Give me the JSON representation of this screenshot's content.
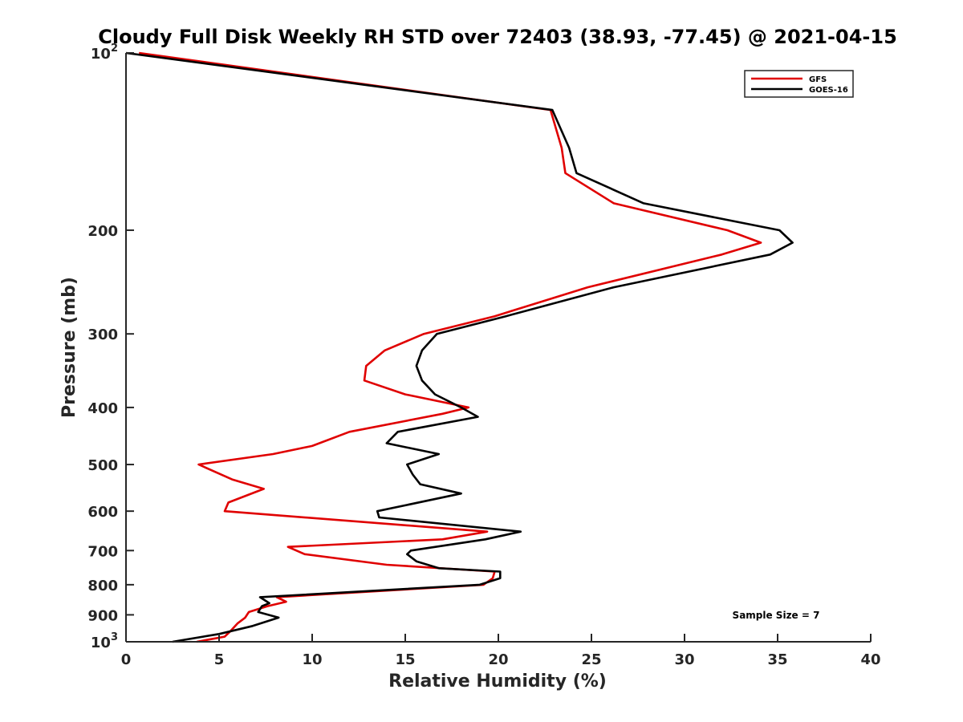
{
  "chart_data": {
    "type": "line",
    "title": "Cloudy Full Disk Weekly RH STD over 72403 (38.93, -77.45) @ 2021-04-15",
    "xlabel": "Relative Humidity (%)",
    "ylabel": "Pressure (mb)",
    "xlim": [
      0,
      40
    ],
    "ylim": [
      100,
      1000
    ],
    "y_scale": "log",
    "y_reversed": true,
    "x_ticks": [
      "0",
      "5",
      "10",
      "15",
      "20",
      "25",
      "30",
      "35",
      "40"
    ],
    "y_ticks": [
      {
        "value": 100,
        "base": "10",
        "exp": "2"
      },
      {
        "value": 200,
        "label": "200"
      },
      {
        "value": 300,
        "label": "300"
      },
      {
        "value": 400,
        "label": "400"
      },
      {
        "value": 500,
        "label": "500"
      },
      {
        "value": 600,
        "label": "600"
      },
      {
        "value": 700,
        "label": "700"
      },
      {
        "value": 800,
        "label": "800"
      },
      {
        "value": 900,
        "label": "900"
      },
      {
        "value": 1000,
        "base": "10",
        "exp": "3"
      }
    ],
    "grid": false,
    "legend_position": "top-right",
    "annotation": "Sample Size = 7",
    "series": [
      {
        "name": "GFS",
        "color": "#e00000",
        "points": [
          [
            0.7,
            100
          ],
          [
            22.8,
            125
          ],
          [
            23.4,
            145
          ],
          [
            23.6,
            160
          ],
          [
            26.2,
            180
          ],
          [
            32.3,
            200
          ],
          [
            34.1,
            210
          ],
          [
            32.0,
            220
          ],
          [
            24.8,
            250
          ],
          [
            19.8,
            280
          ],
          [
            16.0,
            300
          ],
          [
            13.9,
            320
          ],
          [
            12.9,
            340
          ],
          [
            12.8,
            360
          ],
          [
            15.0,
            380
          ],
          [
            18.4,
            400
          ],
          [
            17.0,
            410
          ],
          [
            12.0,
            440
          ],
          [
            10.0,
            465
          ],
          [
            7.9,
            480
          ],
          [
            3.9,
            500
          ],
          [
            5.7,
            530
          ],
          [
            7.4,
            550
          ],
          [
            5.5,
            580
          ],
          [
            5.3,
            600
          ],
          [
            19.4,
            650
          ],
          [
            17.0,
            670
          ],
          [
            8.7,
            690
          ],
          [
            9.6,
            710
          ],
          [
            14.0,
            740
          ],
          [
            19.8,
            760
          ],
          [
            19.7,
            780
          ],
          [
            19.2,
            800
          ],
          [
            8.1,
            840
          ],
          [
            8.6,
            855
          ],
          [
            7.6,
            870
          ],
          [
            6.6,
            890
          ],
          [
            6.4,
            910
          ],
          [
            6.0,
            930
          ],
          [
            5.6,
            960
          ],
          [
            5.3,
            980
          ],
          [
            3.8,
            1000
          ]
        ]
      },
      {
        "name": "GOES-16",
        "color": "#000000",
        "points": [
          [
            0.0,
            100
          ],
          [
            22.9,
            125
          ],
          [
            23.8,
            145
          ],
          [
            24.2,
            160
          ],
          [
            27.8,
            180
          ],
          [
            35.1,
            200
          ],
          [
            35.8,
            210
          ],
          [
            34.6,
            220
          ],
          [
            26.2,
            250
          ],
          [
            20.4,
            280
          ],
          [
            16.7,
            300
          ],
          [
            15.9,
            320
          ],
          [
            15.6,
            340
          ],
          [
            15.9,
            360
          ],
          [
            16.6,
            380
          ],
          [
            18.0,
            400
          ],
          [
            18.9,
            415
          ],
          [
            14.6,
            440
          ],
          [
            14.0,
            460
          ],
          [
            16.8,
            480
          ],
          [
            15.1,
            500
          ],
          [
            15.4,
            520
          ],
          [
            15.8,
            540
          ],
          [
            18.0,
            560
          ],
          [
            13.5,
            600
          ],
          [
            13.6,
            615
          ],
          [
            21.2,
            650
          ],
          [
            19.3,
            670
          ],
          [
            15.3,
            700
          ],
          [
            15.1,
            710
          ],
          [
            15.6,
            730
          ],
          [
            16.8,
            750
          ],
          [
            20.1,
            760
          ],
          [
            20.1,
            780
          ],
          [
            19.0,
            800
          ],
          [
            7.2,
            840
          ],
          [
            7.7,
            860
          ],
          [
            7.3,
            870
          ],
          [
            7.1,
            890
          ],
          [
            8.2,
            910
          ],
          [
            6.8,
            940
          ],
          [
            5.0,
            970
          ],
          [
            2.5,
            1000
          ]
        ]
      }
    ]
  }
}
